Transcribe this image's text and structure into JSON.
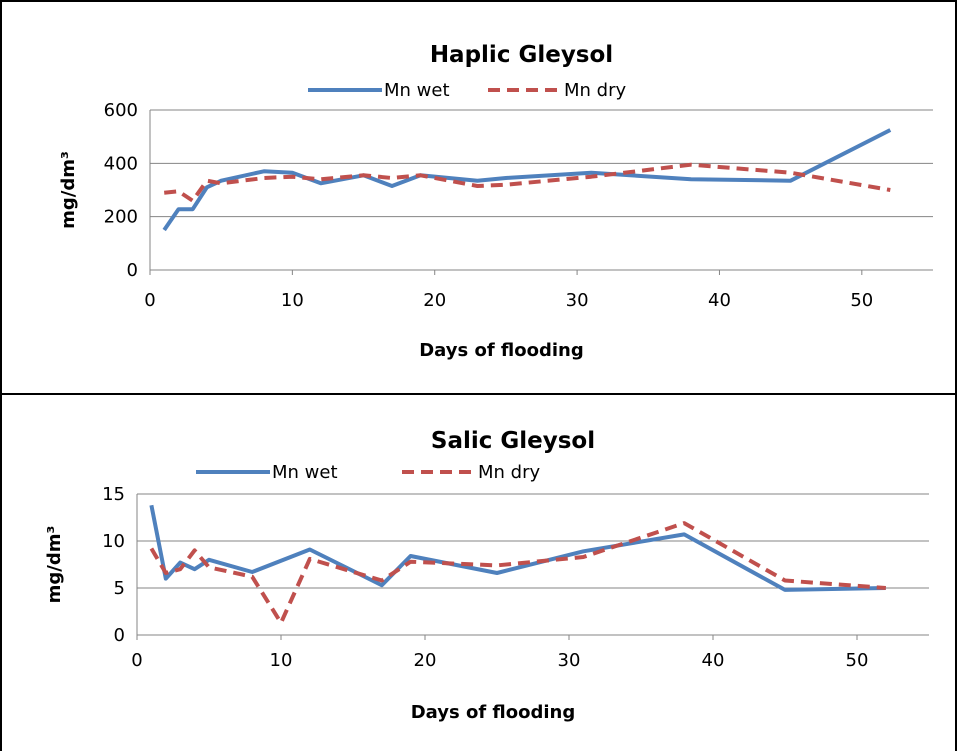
{
  "colors": {
    "wet": "#4f81bd",
    "dry": "#c0504d",
    "grid": "#858585",
    "frame": "#000000"
  },
  "chart_data": [
    {
      "type": "line",
      "title": "Haplic Gleysol",
      "xlabel": "Days of flooding",
      "ylabel": "mg/dm³",
      "xlim": [
        0,
        55
      ],
      "ylim": [
        0,
        600
      ],
      "xticks": [
        0,
        10,
        20,
        30,
        40,
        50
      ],
      "yticks": [
        0,
        200,
        400,
        600
      ],
      "grid": true,
      "legend_position": "top",
      "series": [
        {
          "name": "Mn wet",
          "style": "solid",
          "color": "#4f81bd",
          "x": [
            1,
            2,
            3,
            4,
            5,
            8,
            10,
            12,
            15,
            17,
            19,
            23,
            25,
            31,
            38,
            45,
            52
          ],
          "y": [
            150,
            228,
            228,
            310,
            335,
            370,
            365,
            325,
            355,
            315,
            355,
            335,
            345,
            365,
            340,
            335,
            525
          ]
        },
        {
          "name": "Mn dry",
          "style": "dashed",
          "color": "#c0504d",
          "x": [
            1,
            2,
            3,
            4,
            5,
            8,
            10,
            12,
            15,
            17,
            19,
            23,
            25,
            31,
            38,
            45,
            52
          ],
          "y": [
            290,
            295,
            260,
            335,
            325,
            345,
            350,
            340,
            355,
            345,
            355,
            315,
            320,
            350,
            395,
            365,
            300
          ]
        }
      ]
    },
    {
      "type": "line",
      "title": "Salic Gleysol",
      "xlabel": "Days of flooding",
      "ylabel": "mg/dm³",
      "xlim": [
        0,
        55
      ],
      "ylim": [
        0,
        15
      ],
      "xticks": [
        0,
        10,
        20,
        30,
        40,
        50
      ],
      "yticks": [
        0,
        5,
        10,
        15
      ],
      "grid": true,
      "legend_position": "top",
      "series": [
        {
          "name": "Mn wet",
          "style": "solid",
          "color": "#4f81bd",
          "x": [
            1,
            2,
            3,
            4,
            5,
            8,
            12,
            17,
            19,
            25,
            31,
            38,
            45,
            52
          ],
          "y": [
            13.8,
            6.0,
            7.7,
            7.0,
            8.0,
            6.7,
            9.1,
            5.3,
            8.4,
            6.6,
            8.9,
            10.7,
            4.8,
            5.0
          ]
        },
        {
          "name": "Mn dry",
          "style": "dashed",
          "color": "#c0504d",
          "x": [
            1,
            2,
            3,
            4,
            5,
            8,
            10,
            12,
            17,
            19,
            25,
            31,
            38,
            45,
            52
          ],
          "y": [
            9.2,
            6.6,
            7.0,
            9.0,
            7.2,
            6.2,
            1.3,
            8.1,
            5.8,
            7.8,
            7.4,
            8.3,
            11.9,
            5.8,
            5.0
          ]
        }
      ]
    }
  ]
}
